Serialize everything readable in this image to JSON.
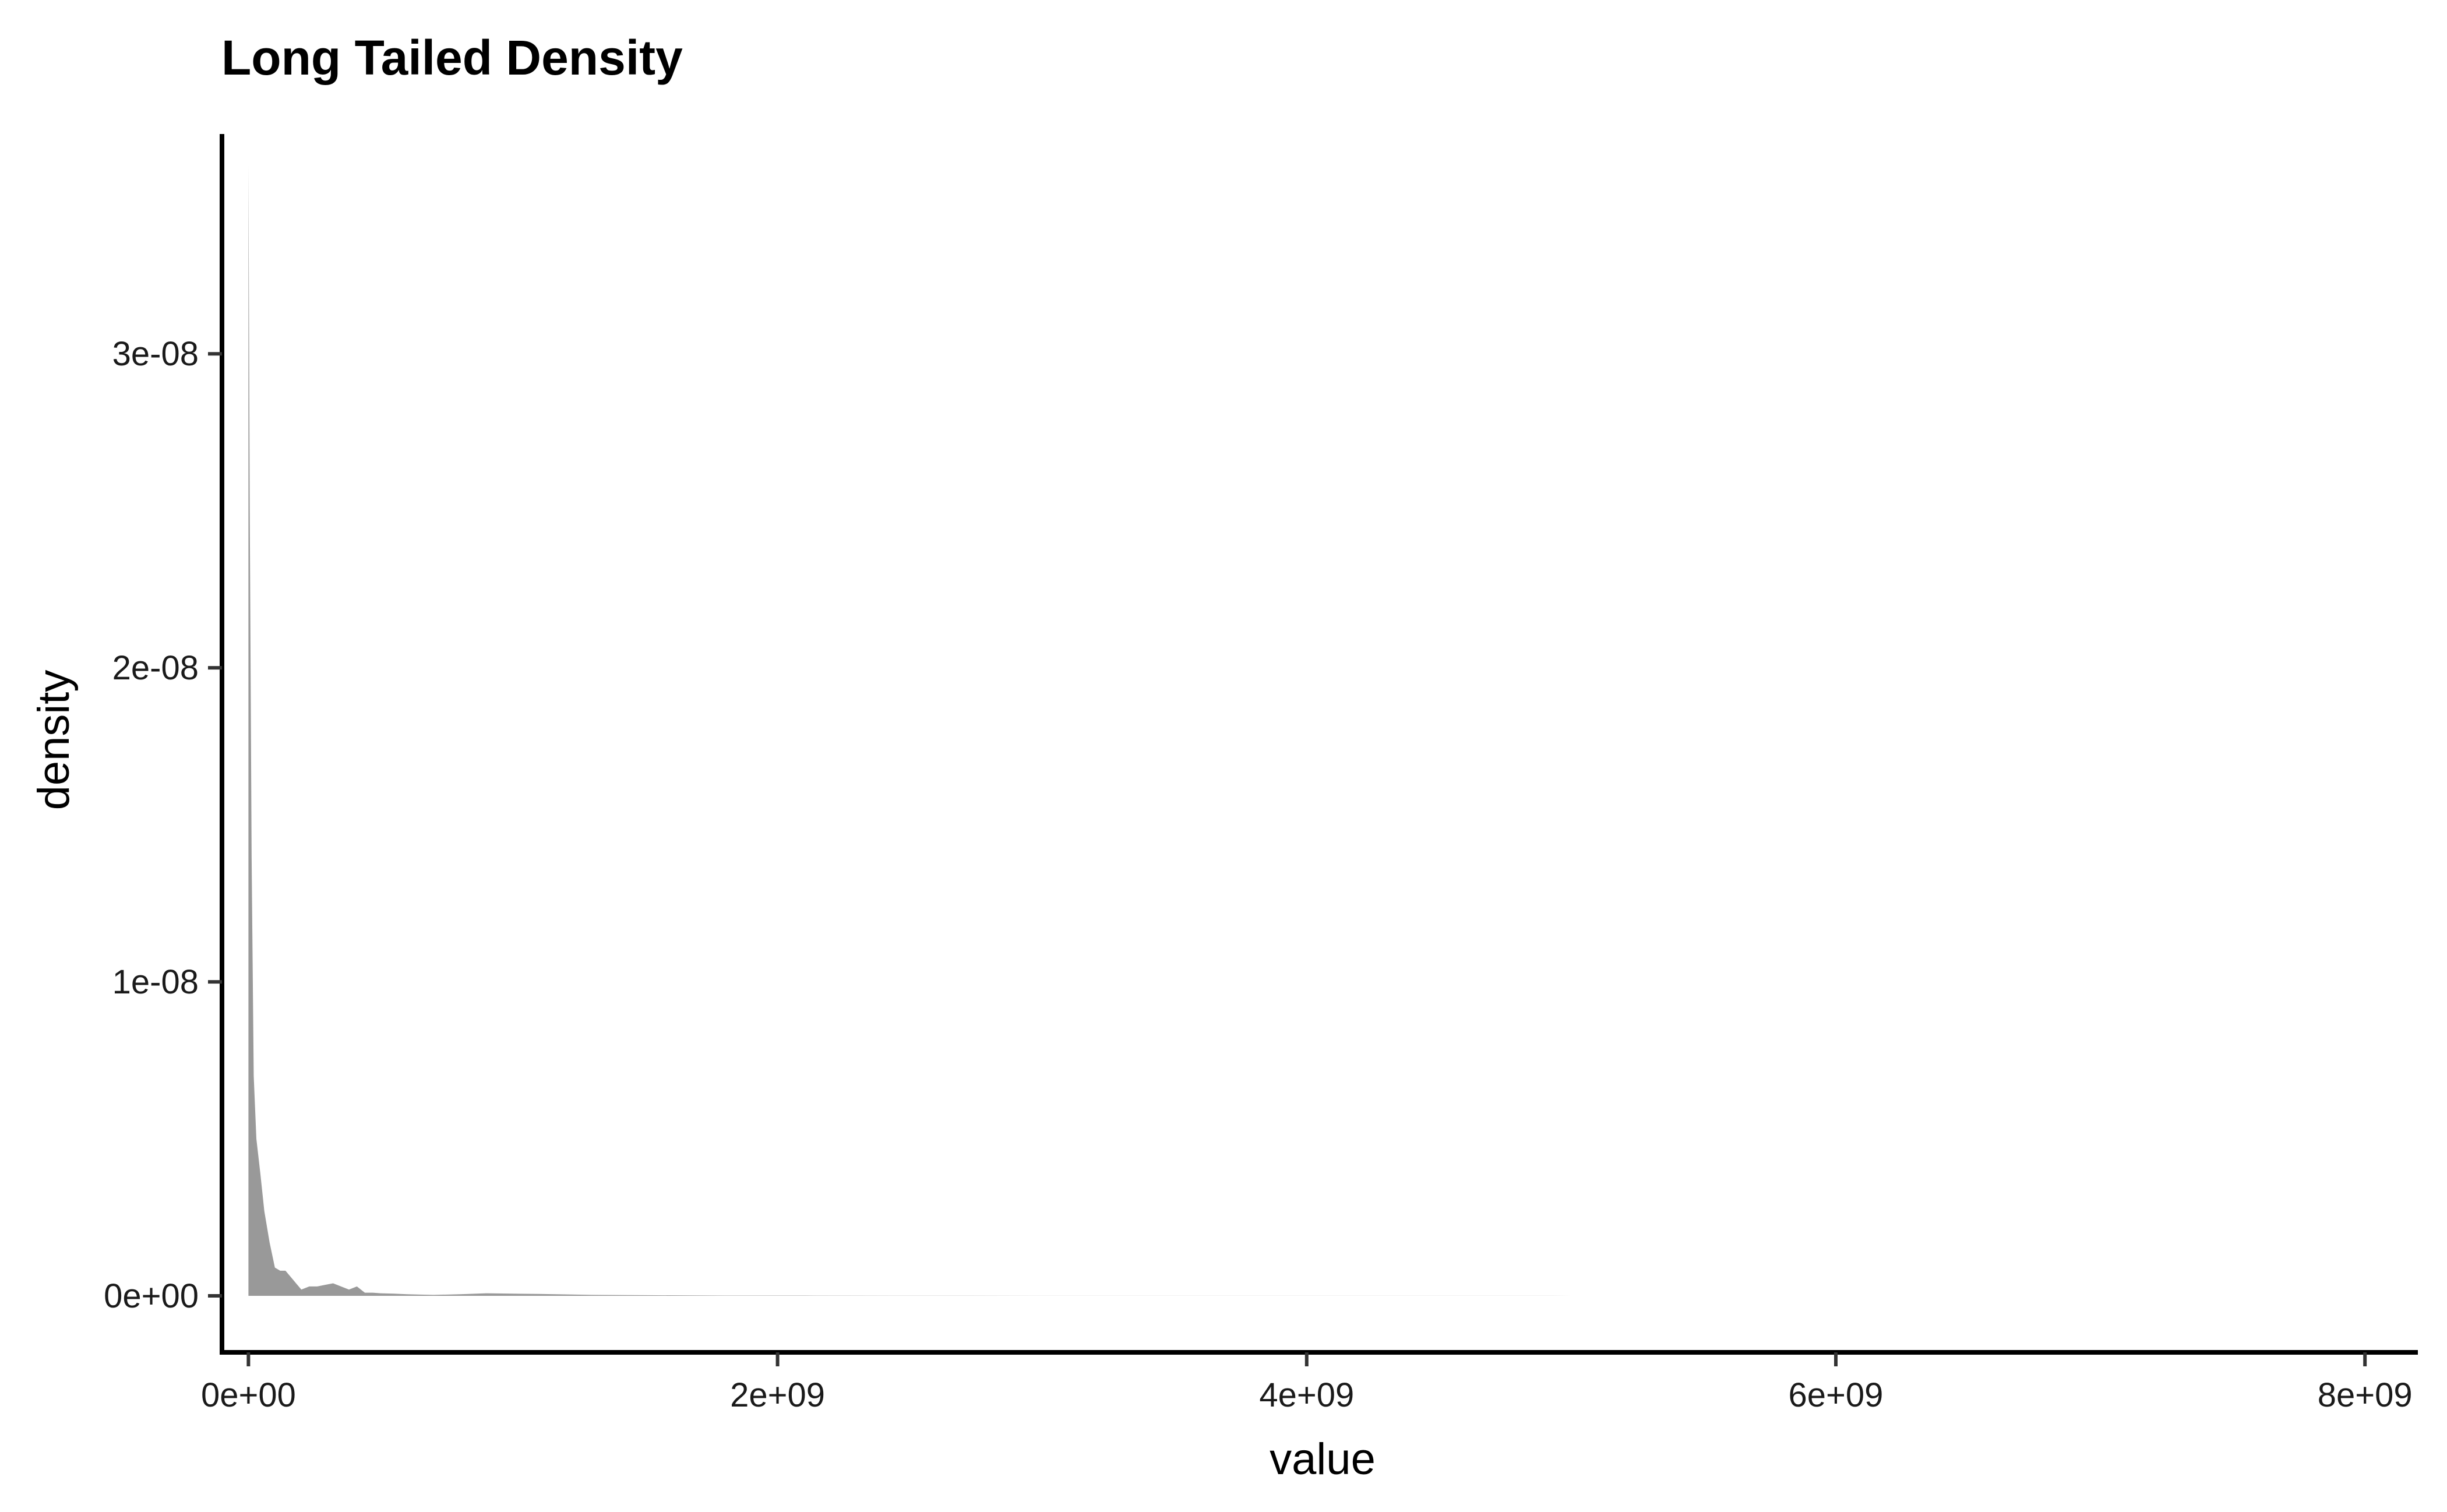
{
  "chart_data": {
    "type": "area",
    "title": "Long Tailed Density",
    "xlabel": "value",
    "ylabel": "density",
    "xlim": [
      -100000000,
      8200000000
    ],
    "ylim": [
      -1.8e-09,
      3.7e-08
    ],
    "x_ticks": [
      {
        "value": 0,
        "label": "0e+00"
      },
      {
        "value": 2000000000,
        "label": "2e+09"
      },
      {
        "value": 4000000000,
        "label": "4e+09"
      },
      {
        "value": 6000000000,
        "label": "6e+09"
      },
      {
        "value": 8000000000,
        "label": "8e+09"
      }
    ],
    "y_ticks": [
      {
        "value": 0,
        "label": "0e+00"
      },
      {
        "value": 1e-08,
        "label": "1e-08"
      },
      {
        "value": 2e-08,
        "label": "2e-08"
      },
      {
        "value": 3e-08,
        "label": "3e-08"
      }
    ],
    "grid": false,
    "legend": "none",
    "fill_color": "#999999",
    "series": [
      {
        "x": [
          0,
          5000000,
          12000000,
          20000000,
          30000000,
          45000000,
          60000000,
          80000000,
          100000000,
          120000000,
          140000000,
          160000000,
          180000000,
          200000000,
          230000000,
          260000000,
          290000000,
          320000000,
          350000000,
          380000000,
          410000000,
          440000000,
          470000000,
          500000000,
          550000000,
          600000000,
          650000000,
          700000000,
          800000000,
          900000000,
          1000000000,
          1100000000,
          1300000000,
          1500000000,
          1800000000,
          2100000000,
          2500000000,
          3000000000,
          4000000000,
          5000000000,
          6000000000,
          6800000000
        ],
        "y": [
          3.6e-08,
          2.5e-08,
          1.4e-08,
          7e-09,
          5e-09,
          3.9e-09,
          2.7e-09,
          1.7e-09,
          9e-10,
          8e-10,
          8e-10,
          6e-10,
          4e-10,
          2e-10,
          3e-10,
          3e-10,
          3.5e-10,
          4e-10,
          3e-10,
          2e-10,
          3e-10,
          1e-10,
          1e-10,
          8e-11,
          7e-11,
          5e-11,
          4e-11,
          3e-11,
          5e-11,
          8e-11,
          7e-11,
          6e-11,
          3e-11,
          2e-11,
          1e-11,
          8e-12,
          5e-12,
          3e-12,
          2e-12,
          1e-12,
          5e-13,
          0
        ]
      }
    ]
  }
}
